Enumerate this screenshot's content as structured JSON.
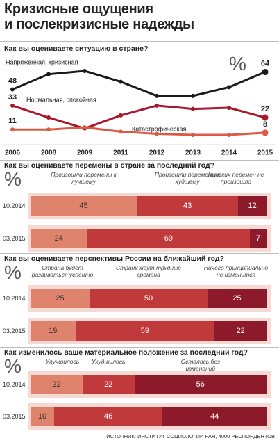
{
  "title": [
    "Кризисные ощущения",
    "и послекризисные надежды"
  ],
  "source": "ИСТОЧНИК: ИНСТИТУТ СОЦИОЛОГИИ РАН, 4000 РЕСПОНДЕНТОВ",
  "chart_data": [
    {
      "type": "line",
      "title": "Как вы оцениваете ситуацию в стране?",
      "unit_symbol": "%",
      "categories": [
        "2006",
        "2008",
        "2009",
        "2011",
        "2012",
        "2013",
        "2014",
        "2015"
      ],
      "series": [
        {
          "name": "Напряженная, кризисная",
          "color": "#1a1a1a",
          "values": [
            48,
            62,
            65,
            55,
            42,
            42,
            50,
            64
          ]
        },
        {
          "name": "Нормальная, спокойная",
          "color": "#a8182c",
          "values": [
            33,
            22,
            12,
            24,
            33,
            30,
            31,
            22
          ]
        },
        {
          "name": "Катастрофическая",
          "color": "#dc5a44",
          "values": [
            11,
            11,
            13,
            9,
            7,
            6,
            6,
            8
          ]
        }
      ]
    },
    {
      "type": "bar",
      "stacked": true,
      "orientation": "horizontal",
      "title": "Как вы оцениваете перемены в стране за последний год?",
      "unit_symbol": "%",
      "categories": [
        "10.2014",
        "03.2015"
      ],
      "series": [
        {
          "name": "Произошли перемены к лучшему",
          "color": "#e0836c",
          "values": [
            45,
            24
          ]
        },
        {
          "name": "Произошли перемены к худшему",
          "color": "#c0393b",
          "values": [
            43,
            69
          ]
        },
        {
          "name": "Никаких перемен не произошло",
          "color": "#8c1a2b",
          "values": [
            12,
            7
          ]
        }
      ]
    },
    {
      "type": "bar",
      "stacked": true,
      "orientation": "horizontal",
      "title": "Как вы оцениваете перспективы России на ближайший год?",
      "unit_symbol": "%",
      "categories": [
        "10.2014",
        "03.2015"
      ],
      "series": [
        {
          "name": "Страна будет развиваться успешно",
          "color": "#e0836c",
          "values": [
            25,
            19
          ]
        },
        {
          "name": "Страну ждут трудные времена",
          "color": "#c0393b",
          "values": [
            50,
            59
          ]
        },
        {
          "name": "Ничего принципиально не изменится",
          "color": "#8c1a2b",
          "values": [
            25,
            22
          ]
        }
      ]
    },
    {
      "type": "bar",
      "stacked": true,
      "orientation": "horizontal",
      "title": "Как изменилось ваше материальное положение за последний год?",
      "unit_symbol": "%",
      "categories": [
        "10.2014",
        "03.2015"
      ],
      "series": [
        {
          "name": "Улучшилось",
          "color": "#e0836c",
          "values": [
            22,
            10
          ]
        },
        {
          "name": "Ухудшилось",
          "color": "#c0393b",
          "values": [
            22,
            46
          ]
        },
        {
          "name": "Осталось без изменений",
          "color": "#8c1a2b",
          "values": [
            56,
            44
          ]
        }
      ]
    }
  ]
}
